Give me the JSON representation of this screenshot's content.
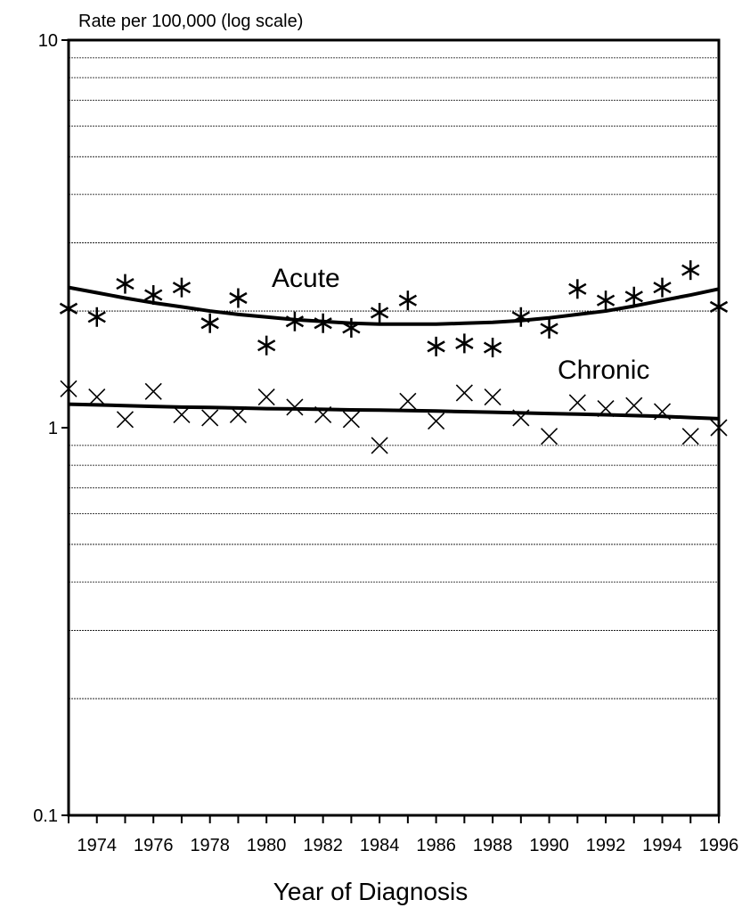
{
  "chart_data": {
    "type": "scatter",
    "title": "",
    "ylabel": "Rate per 100,000 (log scale)",
    "xlabel": "Year of Diagnosis",
    "yscale": "log",
    "ylim": [
      0.1,
      10
    ],
    "xlim": [
      1973,
      1996
    ],
    "yticks": [
      {
        "value": 10,
        "label": "10"
      },
      {
        "value": 1,
        "label": "1"
      },
      {
        "value": 0.1,
        "label": "0.1"
      }
    ],
    "xticks": [
      1974,
      1976,
      1978,
      1980,
      1982,
      1984,
      1986,
      1988,
      1990,
      1992,
      1994,
      1996
    ],
    "grid": true,
    "legend": "none",
    "series": [
      {
        "name": "Acute",
        "marker": "asterisk",
        "x": [
          1973,
          1974,
          1975,
          1976,
          1977,
          1978,
          1979,
          1980,
          1981,
          1982,
          1983,
          1984,
          1985,
          1986,
          1987,
          1988,
          1989,
          1990,
          1991,
          1992,
          1993,
          1994,
          1995,
          1996
        ],
        "values": [
          2.03,
          1.93,
          2.35,
          2.2,
          2.3,
          1.86,
          2.16,
          1.63,
          1.88,
          1.86,
          1.81,
          1.98,
          2.13,
          1.62,
          1.65,
          1.61,
          1.93,
          1.8,
          2.28,
          2.13,
          2.18,
          2.3,
          2.55,
          2.05
        ],
        "trend": [
          2.3,
          2.23,
          2.16,
          2.1,
          2.05,
          2.0,
          1.96,
          1.93,
          1.9,
          1.88,
          1.86,
          1.85,
          1.85,
          1.85,
          1.86,
          1.87,
          1.89,
          1.92,
          1.96,
          2.0,
          2.06,
          2.13,
          2.2,
          2.28
        ]
      },
      {
        "name": "Chronic",
        "marker": "x",
        "x": [
          1973,
          1974,
          1975,
          1976,
          1977,
          1978,
          1979,
          1980,
          1981,
          1982,
          1983,
          1984,
          1985,
          1986,
          1987,
          1988,
          1989,
          1990,
          1991,
          1992,
          1993,
          1994,
          1995,
          1996
        ],
        "values": [
          1.26,
          1.2,
          1.05,
          1.24,
          1.08,
          1.06,
          1.08,
          1.2,
          1.13,
          1.08,
          1.05,
          0.9,
          1.17,
          1.04,
          1.23,
          1.2,
          1.06,
          0.95,
          1.16,
          1.12,
          1.14,
          1.1,
          0.95,
          1.0
        ],
        "trend": [
          1.15,
          1.145,
          1.14,
          1.135,
          1.13,
          1.128,
          1.124,
          1.12,
          1.118,
          1.115,
          1.112,
          1.11,
          1.107,
          1.104,
          1.1,
          1.096,
          1.092,
          1.088,
          1.084,
          1.08,
          1.075,
          1.07,
          1.062,
          1.055
        ]
      }
    ]
  }
}
